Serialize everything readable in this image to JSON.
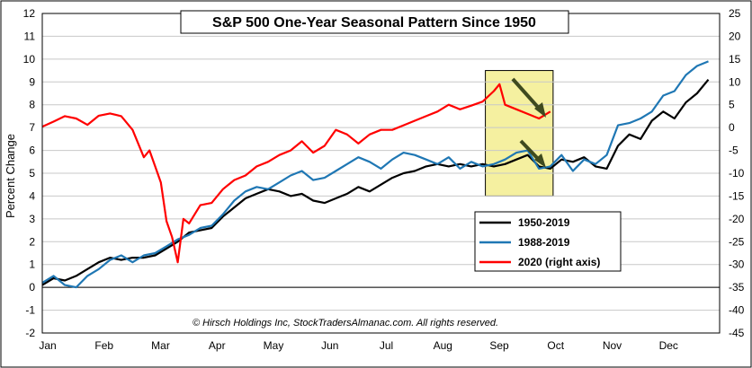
{
  "chart_data": {
    "type": "line",
    "title": "S&P 500 One-Year Seasonal Pattern Since 1950",
    "ylabel": "Percent Change",
    "xlabel": "",
    "categories": [
      "Jan",
      "Feb",
      "Mar",
      "Apr",
      "May",
      "Jun",
      "Jul",
      "Aug",
      "Sep",
      "Oct",
      "Nov",
      "Dec"
    ],
    "ylim": [
      -2,
      12
    ],
    "y_ticks": [
      "-2",
      "-1",
      "0",
      "1",
      "2",
      "3",
      "4",
      "5",
      "6",
      "7",
      "8",
      "9",
      "10",
      "11",
      "12"
    ],
    "y2lim": [
      -45,
      25
    ],
    "y2_ticks": [
      "-45",
      "-40",
      "-35",
      "-30",
      "-25",
      "-20",
      "-15",
      "-10",
      "-5",
      "0",
      "5",
      "10",
      "15",
      "20",
      "25"
    ],
    "grid": "horizontal",
    "legend_position": "lower-right",
    "credit": "© Hirsch Holdings Inc, StockTradersAlmanac.com. All rights reserved.",
    "highlight": {
      "x_from": 7.85,
      "x_to": 9.05,
      "color": "#f5f0a0"
    },
    "series": [
      {
        "name": "1950-2019",
        "color": "#000000",
        "axis": "left",
        "x": [
          0,
          0.2,
          0.4,
          0.6,
          0.8,
          1.0,
          1.2,
          1.4,
          1.6,
          1.8,
          2.0,
          2.2,
          2.4,
          2.6,
          2.8,
          3.0,
          3.2,
          3.4,
          3.6,
          3.8,
          4.0,
          4.2,
          4.4,
          4.6,
          4.8,
          5.0,
          5.2,
          5.4,
          5.6,
          5.8,
          6.0,
          6.2,
          6.4,
          6.6,
          6.8,
          7.0,
          7.2,
          7.4,
          7.6,
          7.8,
          8.0,
          8.2,
          8.4,
          8.6,
          8.8,
          9.0,
          9.2,
          9.4,
          9.6,
          9.8,
          10.0,
          10.2,
          10.4,
          10.6,
          10.8,
          11.0,
          11.2,
          11.4,
          11.6,
          11.8
        ],
        "values": [
          0.1,
          0.4,
          0.3,
          0.5,
          0.8,
          1.1,
          1.3,
          1.2,
          1.3,
          1.3,
          1.4,
          1.7,
          2.0,
          2.4,
          2.5,
          2.6,
          3.1,
          3.5,
          3.9,
          4.1,
          4.3,
          4.2,
          4.0,
          4.1,
          3.8,
          3.7,
          3.9,
          4.1,
          4.4,
          4.2,
          4.5,
          4.8,
          5.0,
          5.1,
          5.3,
          5.4,
          5.3,
          5.4,
          5.3,
          5.4,
          5.3,
          5.4,
          5.6,
          5.8,
          5.3,
          5.2,
          5.6,
          5.5,
          5.7,
          5.3,
          5.2,
          6.2,
          6.7,
          6.5,
          7.3,
          7.7,
          7.4,
          8.1,
          8.5,
          9.1
        ]
      },
      {
        "name": "1988-2019",
        "color": "#1f77b4",
        "axis": "left",
        "x": [
          0,
          0.2,
          0.4,
          0.6,
          0.8,
          1.0,
          1.2,
          1.4,
          1.6,
          1.8,
          2.0,
          2.2,
          2.4,
          2.6,
          2.8,
          3.0,
          3.2,
          3.4,
          3.6,
          3.8,
          4.0,
          4.2,
          4.4,
          4.6,
          4.8,
          5.0,
          5.2,
          5.4,
          5.6,
          5.8,
          6.0,
          6.2,
          6.4,
          6.6,
          6.8,
          7.0,
          7.2,
          7.4,
          7.6,
          7.8,
          8.0,
          8.2,
          8.4,
          8.6,
          8.8,
          9.0,
          9.2,
          9.4,
          9.6,
          9.8,
          10.0,
          10.2,
          10.4,
          10.6,
          10.8,
          11.0,
          11.2,
          11.4,
          11.6,
          11.8
        ],
        "values": [
          0.2,
          0.5,
          0.1,
          0.0,
          0.5,
          0.8,
          1.2,
          1.4,
          1.1,
          1.4,
          1.5,
          1.8,
          2.1,
          2.3,
          2.6,
          2.7,
          3.2,
          3.8,
          4.2,
          4.4,
          4.3,
          4.6,
          4.9,
          5.1,
          4.7,
          4.8,
          5.1,
          5.4,
          5.7,
          5.5,
          5.2,
          5.6,
          5.9,
          5.8,
          5.6,
          5.4,
          5.7,
          5.2,
          5.5,
          5.3,
          5.4,
          5.6,
          5.9,
          6.0,
          5.2,
          5.3,
          5.8,
          5.1,
          5.6,
          5.4,
          5.8,
          7.1,
          7.2,
          7.4,
          7.7,
          8.4,
          8.6,
          9.3,
          9.7,
          9.9
        ]
      },
      {
        "name": "2020 (right axis)",
        "color": "#ff0000",
        "axis": "right",
        "x": [
          0,
          0.2,
          0.4,
          0.6,
          0.8,
          1.0,
          1.2,
          1.4,
          1.6,
          1.8,
          1.9,
          2.0,
          2.1,
          2.2,
          2.3,
          2.4,
          2.5,
          2.6,
          2.7,
          2.8,
          3.0,
          3.2,
          3.4,
          3.6,
          3.8,
          4.0,
          4.2,
          4.4,
          4.6,
          4.8,
          5.0,
          5.2,
          5.4,
          5.6,
          5.8,
          6.0,
          6.2,
          6.4,
          6.6,
          6.8,
          7.0,
          7.2,
          7.4,
          7.6,
          7.8,
          8.0,
          8.1,
          8.2,
          8.4,
          8.6,
          8.8,
          9.0
        ],
        "values": [
          0.2,
          1.3,
          2.5,
          2.0,
          0.6,
          2.6,
          3.1,
          2.5,
          -0.5,
          -6.5,
          -5.0,
          -8.5,
          -12.0,
          -20.5,
          -24.0,
          -29.5,
          -20.0,
          -21.0,
          -19.0,
          -17.0,
          -16.5,
          -13.5,
          -11.5,
          -10.5,
          -8.5,
          -7.5,
          -6.0,
          -5.0,
          -3.0,
          -5.5,
          -4.0,
          -0.5,
          -1.5,
          -3.5,
          -1.5,
          -0.5,
          -0.5,
          0.5,
          1.5,
          2.5,
          3.5,
          5.0,
          4.0,
          4.8,
          5.7,
          8.0,
          9.5,
          5.0,
          4.0,
          3.0,
          2.0,
          3.5
        ]
      }
    ]
  }
}
